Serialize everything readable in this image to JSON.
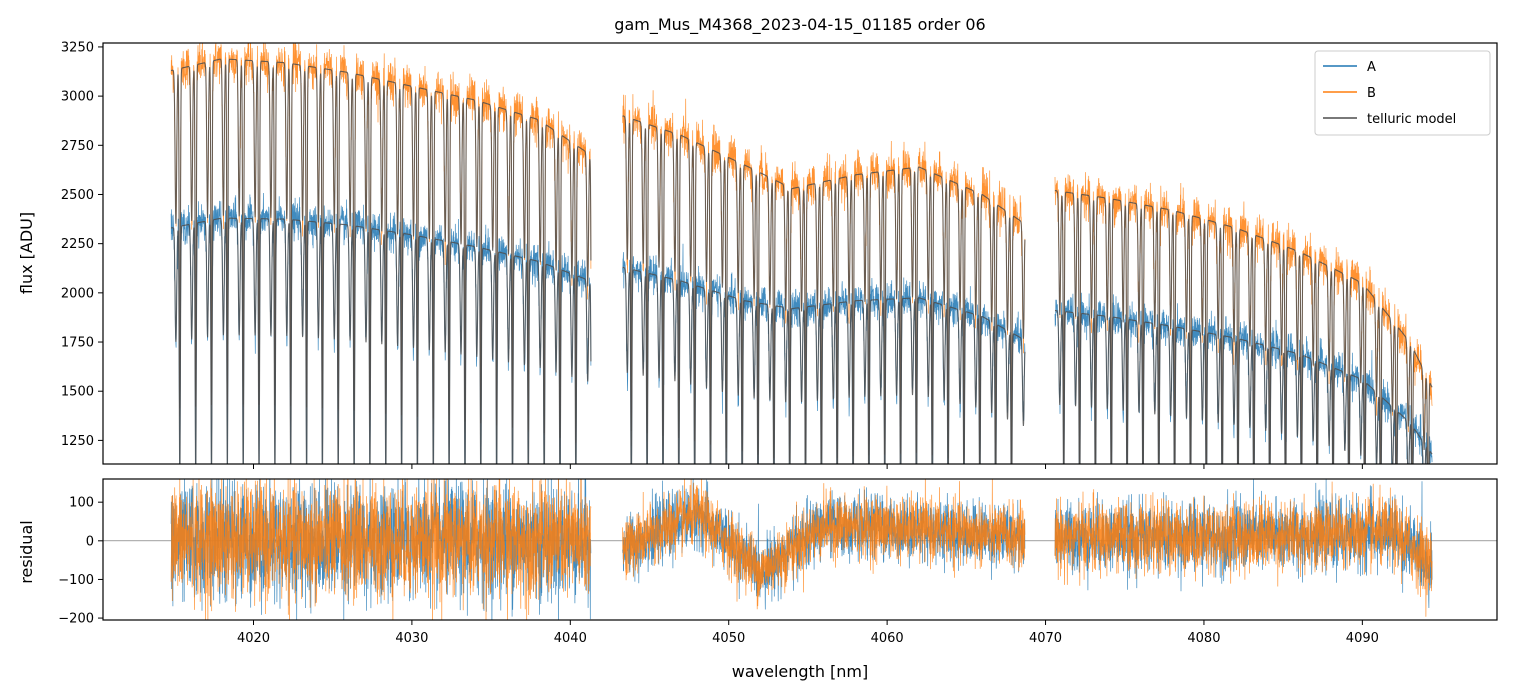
{
  "chart_data": [
    {
      "type": "line",
      "title": "gam_Mus_M4368_2023-04-15_01185  order 06",
      "xlabel": "",
      "ylabel": "flux [ADU]",
      "xlim": [
        4010.5,
        4098.5
      ],
      "ylim": [
        1130,
        3270
      ],
      "yticks": [
        1250,
        1500,
        1750,
        2000,
        2250,
        2500,
        2750,
        3000,
        3250
      ],
      "xticks": [
        4020,
        4030,
        4040,
        4050,
        4060,
        4070,
        4080,
        4090
      ],
      "show_xtick_labels": false,
      "legend": {
        "placement": "top-right",
        "entries": [
          "A",
          "B",
          "telluric model"
        ]
      },
      "colors": {
        "A": "#1f77b4",
        "B": "#ff7f0e",
        "telluric model": "#4d4d4d"
      },
      "segments": [
        {
          "x_start": 4014.8,
          "x_end": 4041.3,
          "A_continuum": [
            [
              4014.8,
              2330
            ],
            [
              4018,
              2380
            ],
            [
              4022,
              2375
            ],
            [
              4026,
              2345
            ],
            [
              4030,
              2295
            ],
            [
              4034,
              2235
            ],
            [
              4038,
              2160
            ],
            [
              4041.3,
              2060
            ]
          ],
          "B_continuum": [
            [
              4014.8,
              3130
            ],
            [
              4018,
              3190
            ],
            [
              4022,
              3170
            ],
            [
              4026,
              3120
            ],
            [
              4030,
              3050
            ],
            [
              4034,
              2980
            ],
            [
              4038,
              2880
            ],
            [
              4041.3,
              2700
            ]
          ]
        },
        {
          "x_start": 4043.3,
          "x_end": 4068.7,
          "A_continuum": [
            [
              4043.3,
              2130
            ],
            [
              4047,
              2060
            ],
            [
              4051,
              1960
            ],
            [
              4054,
              1920
            ],
            [
              4058,
              1960
            ],
            [
              4062,
              1975
            ],
            [
              4066,
              1880
            ],
            [
              4068.7,
              1760
            ]
          ],
          "B_continuum": [
            [
              4043.3,
              2900
            ],
            [
              4047,
              2800
            ],
            [
              4051,
              2650
            ],
            [
              4054,
              2530
            ],
            [
              4058,
              2600
            ],
            [
              4062,
              2640
            ],
            [
              4066,
              2500
            ],
            [
              4068.7,
              2350
            ]
          ]
        },
        {
          "x_start": 4070.6,
          "x_end": 4094.4,
          "A_continuum": [
            [
              4070.6,
              1910
            ],
            [
              4074,
              1880
            ],
            [
              4078,
              1830
            ],
            [
              4082,
              1770
            ],
            [
              4086,
              1690
            ],
            [
              4090,
              1560
            ],
            [
              4093,
              1340
            ],
            [
              4094.4,
              1180
            ]
          ],
          "B_continuum": [
            [
              4070.6,
              2520
            ],
            [
              4074,
              2480
            ],
            [
              4078,
              2420
            ],
            [
              4082,
              2330
            ],
            [
              4086,
              2210
            ],
            [
              4090,
              2050
            ],
            [
              4093,
              1750
            ],
            [
              4094.4,
              1520
            ]
          ]
        }
      ],
      "telluric_line_spacing": 1.0,
      "series": [
        {
          "name": "A"
        },
        {
          "name": "B"
        },
        {
          "name": "telluric model"
        }
      ]
    },
    {
      "type": "line",
      "title": "",
      "xlabel": "wavelength [nm]",
      "ylabel": "residual",
      "xlim": [
        4010.5,
        4098.5
      ],
      "ylim": [
        -205,
        160
      ],
      "yticks": [
        -200,
        -100,
        0,
        100
      ],
      "xticks": [
        4020,
        4030,
        4040,
        4050,
        4060,
        4070,
        4080,
        4090
      ],
      "zero_line": 0,
      "segments": [
        {
          "x_start": 4014.8,
          "x_end": 4041.3,
          "noise": 75,
          "trend": [
            [
              4014.8,
              0
            ],
            [
              4030,
              0
            ],
            [
              4041.3,
              0
            ]
          ]
        },
        {
          "x_start": 4043.3,
          "x_end": 4068.7,
          "noise": 40,
          "trend": [
            [
              4043.3,
              -20
            ],
            [
              4048,
              70
            ],
            [
              4052,
              -80
            ],
            [
              4056,
              40
            ],
            [
              4062,
              30
            ],
            [
              4068.7,
              10
            ]
          ]
        },
        {
          "x_start": 4070.6,
          "x_end": 4094.4,
          "noise": 45,
          "trend": [
            [
              4070.6,
              10
            ],
            [
              4080,
              10
            ],
            [
              4092,
              20
            ],
            [
              4094.4,
              -60
            ]
          ]
        }
      ],
      "series": [
        {
          "name": "A"
        },
        {
          "name": "B"
        }
      ]
    }
  ]
}
